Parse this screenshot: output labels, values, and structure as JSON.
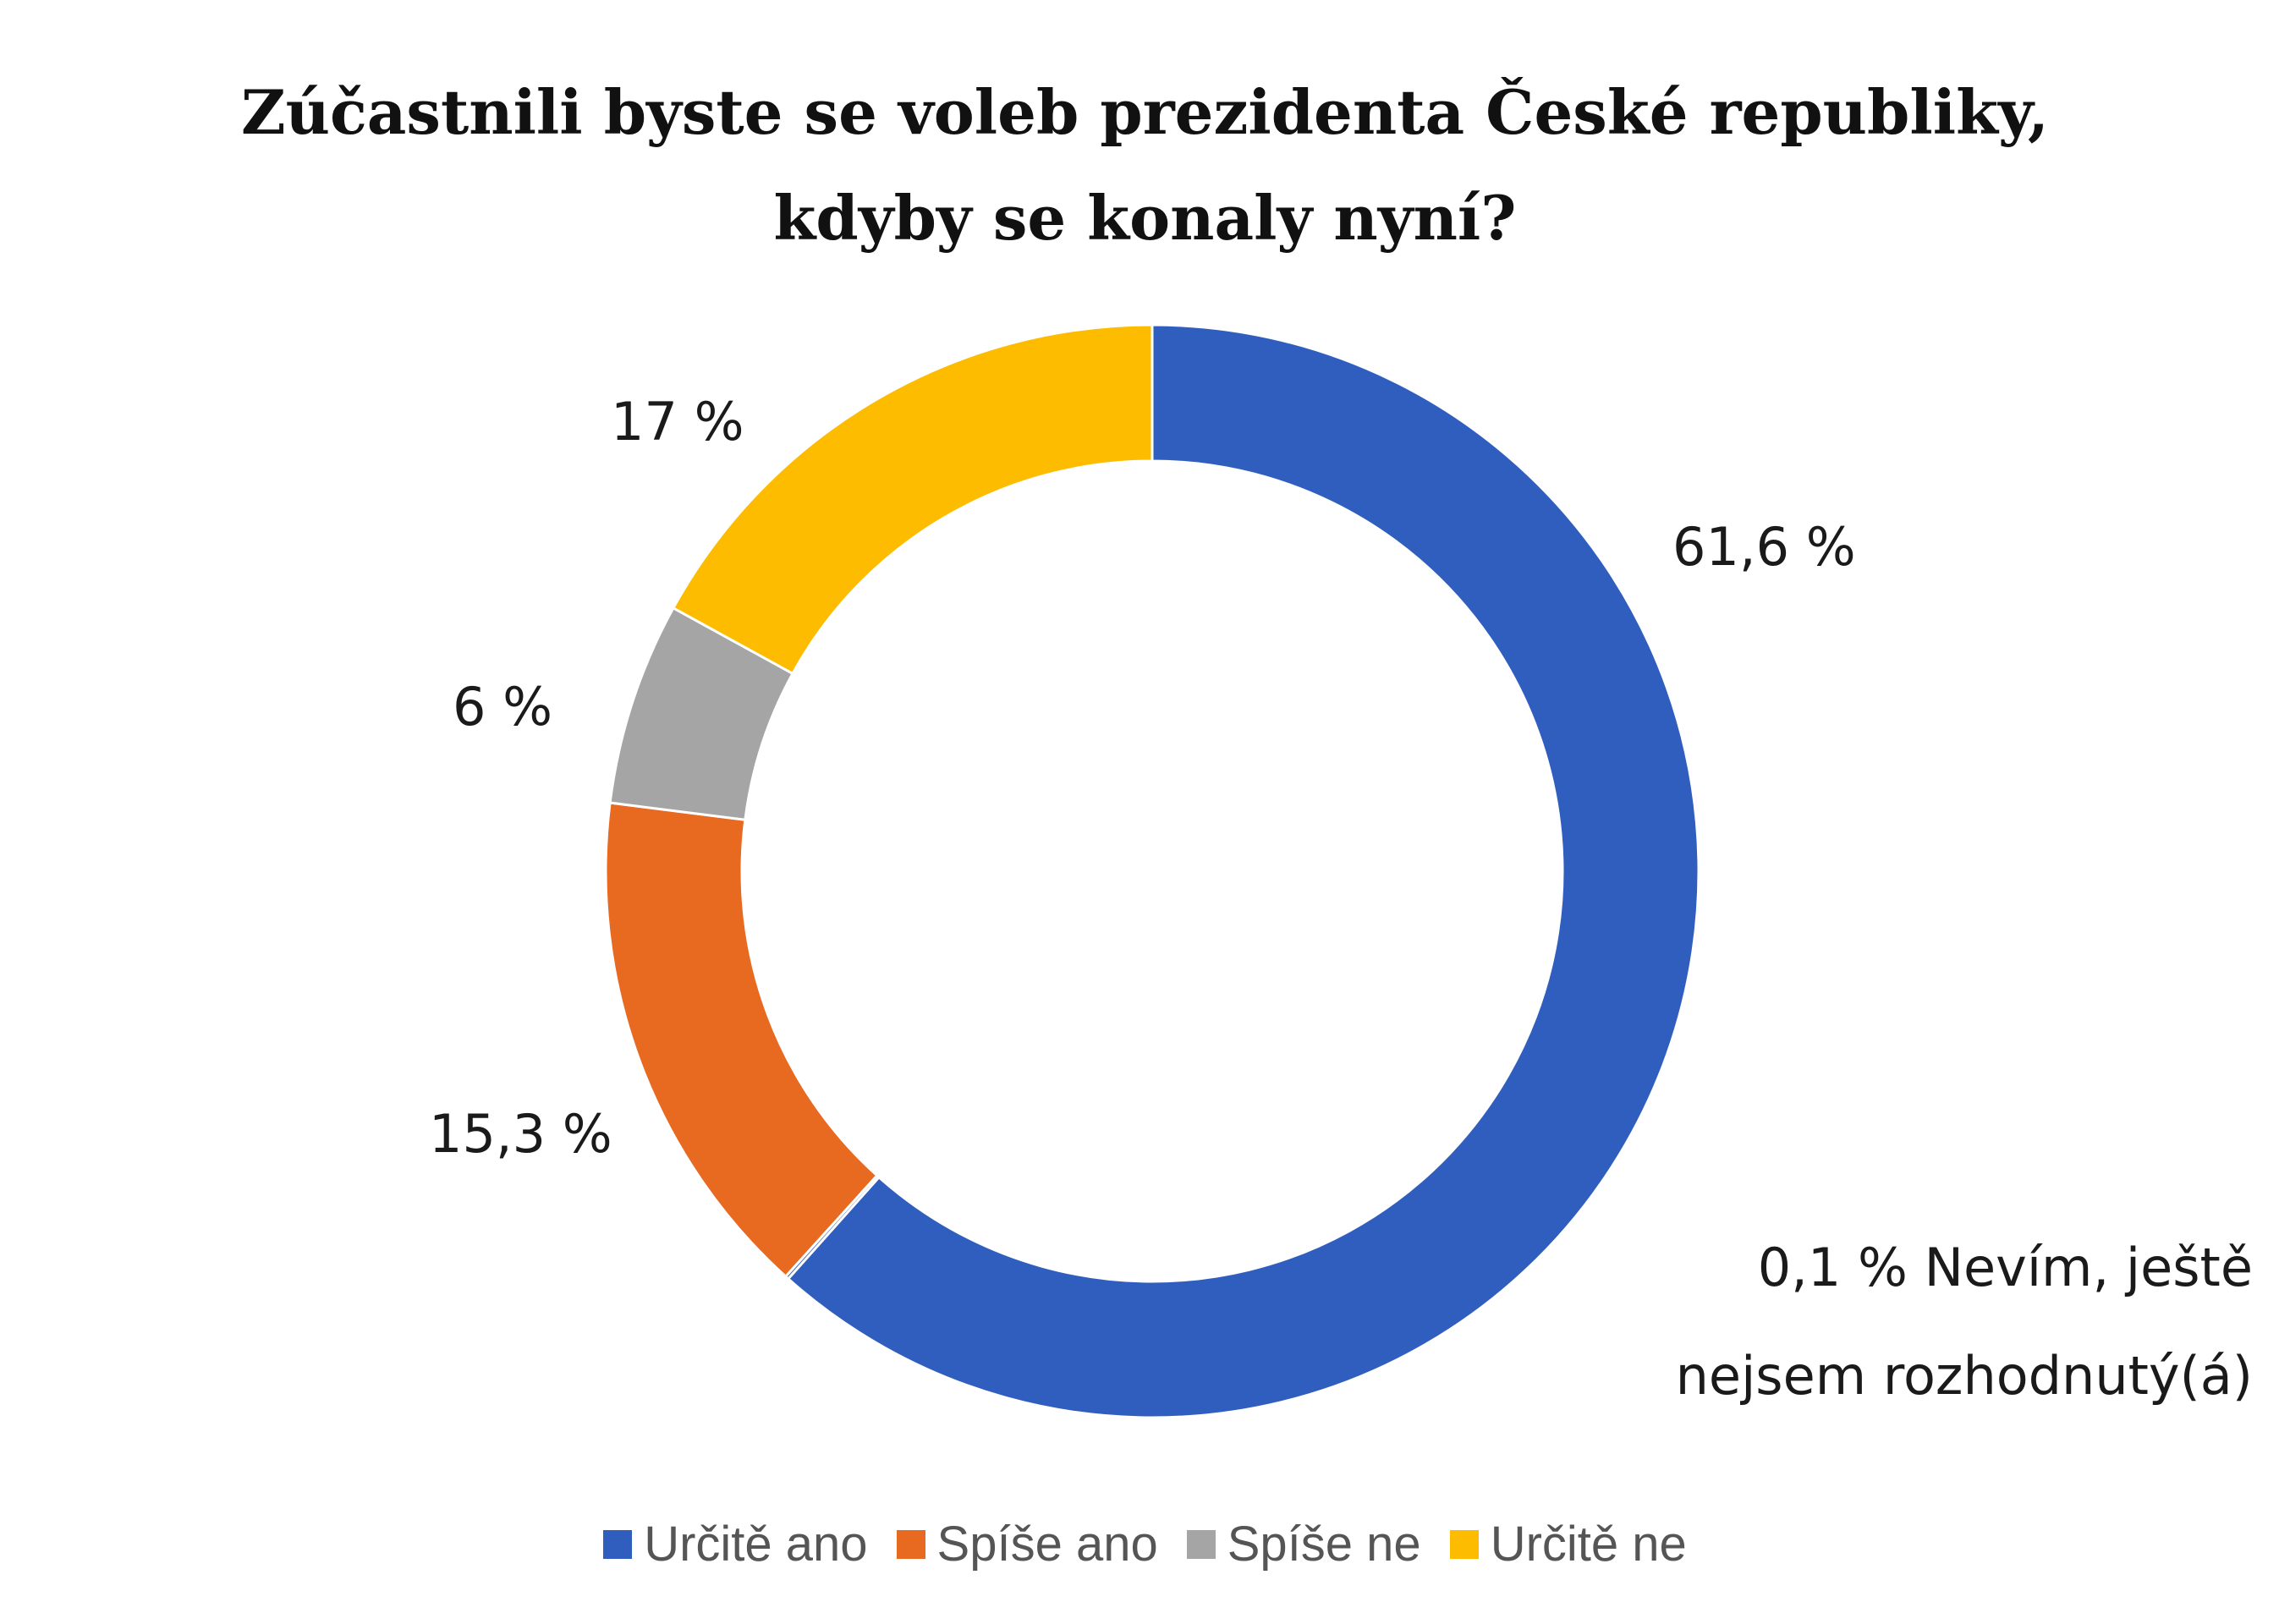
{
  "chart_data": {
    "type": "pie",
    "title_line1": "Zúčastnili byste se voleb prezidenta České republiky,",
    "title_line2": "kdyby se konaly nyní?",
    "donut": true,
    "series": [
      {
        "name": "Určitě ano",
        "value": 61.6,
        "label": "61,6 %",
        "color": "#2F5EBF"
      },
      {
        "name": "Nevím, ještě nejsem rozhodnutý(á)",
        "value": 0.1,
        "label_line1": "0,1 % Nevím, ještě",
        "label_line2": "nejsem rozhodnutý(á)",
        "color": "#2F5EBF"
      },
      {
        "name": "Spíše ano",
        "value": 15.3,
        "label": "15,3 %",
        "color": "#E86A21"
      },
      {
        "name": "Spíše ne",
        "value": 6,
        "label": "6 %",
        "color": "#A5A5A5"
      },
      {
        "name": "Určitě ne",
        "value": 17,
        "label": "17 %",
        "color": "#FDBC00"
      }
    ],
    "legend": {
      "placement": "bottom",
      "items": [
        {
          "name": "Určitě ano",
          "color": "#2F5EBF"
        },
        {
          "name": "Spíše ano",
          "color": "#E86A21"
        },
        {
          "name": "Spíše ne",
          "color": "#A5A5A5"
        },
        {
          "name": "Určitě ne",
          "color": "#FDBC00"
        }
      ]
    }
  }
}
